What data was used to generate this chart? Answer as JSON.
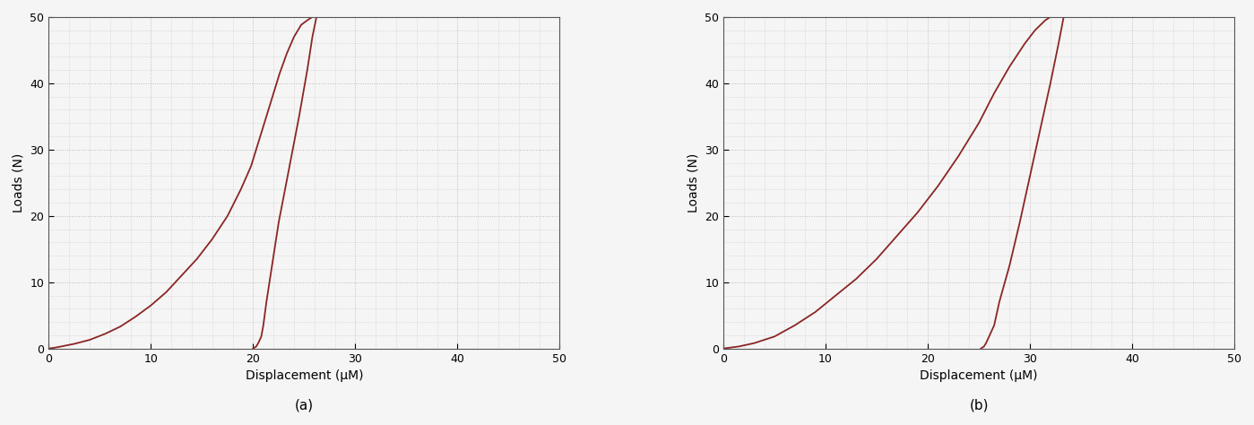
{
  "title_a": "(a)",
  "title_b": "(b)",
  "xlabel": "Displacement (μM)",
  "ylabel": "Loads (N)",
  "xlim": [
    0,
    50
  ],
  "ylim": [
    0,
    50
  ],
  "xticks": [
    0,
    10,
    20,
    30,
    40,
    50
  ],
  "yticks": [
    0,
    10,
    20,
    30,
    40,
    50
  ],
  "line_color": "#8B2525",
  "line_width": 1.3,
  "background_color": "#f5f5f5",
  "grid_color": "#bbbbbb",
  "subplot_label_fontsize": 11,
  "axis_label_fontsize": 10,
  "tick_fontsize": 9,
  "curve_a_loading_disp": [
    0.0,
    0.5,
    1.2,
    2.5,
    4.0,
    5.5,
    7.0,
    8.5,
    10.0,
    11.5,
    13.0,
    14.5,
    16.0,
    17.5,
    18.8,
    19.8,
    20.5,
    21.2,
    21.9,
    22.6,
    23.3,
    24.0,
    24.7,
    25.3,
    25.8,
    26.2
  ],
  "curve_a_loading_load": [
    0.0,
    0.1,
    0.3,
    0.7,
    1.3,
    2.2,
    3.3,
    4.8,
    6.5,
    8.5,
    11.0,
    13.5,
    16.5,
    20.0,
    24.0,
    27.5,
    31.0,
    34.5,
    38.0,
    41.5,
    44.5,
    47.0,
    48.8,
    49.5,
    50.0,
    50.0
  ],
  "curve_a_unloading_disp": [
    26.2,
    25.8,
    25.3,
    24.5,
    23.5,
    22.5,
    21.8,
    21.3,
    21.0,
    20.8,
    20.5,
    20.3,
    20.1,
    20.0
  ],
  "curve_a_unloading_load": [
    50.0,
    47.0,
    42.0,
    35.0,
    27.0,
    19.0,
    12.0,
    7.0,
    3.5,
    1.8,
    0.8,
    0.3,
    0.1,
    0.0
  ],
  "curve_b_loading_disp": [
    0.0,
    0.5,
    1.5,
    3.0,
    5.0,
    7.0,
    9.0,
    11.0,
    13.0,
    15.0,
    17.0,
    19.0,
    21.0,
    23.0,
    25.0,
    26.5,
    28.0,
    29.5,
    30.5,
    31.5,
    32.0,
    32.5,
    33.0,
    33.3
  ],
  "curve_b_loading_load": [
    0.0,
    0.1,
    0.3,
    0.8,
    1.8,
    3.5,
    5.5,
    8.0,
    10.5,
    13.5,
    17.0,
    20.5,
    24.5,
    29.0,
    34.0,
    38.5,
    42.5,
    46.0,
    48.0,
    49.5,
    50.0,
    50.0,
    50.0,
    50.0
  ],
  "curve_b_unloading_disp": [
    33.3,
    32.8,
    32.0,
    31.0,
    30.0,
    29.0,
    28.0,
    27.0,
    26.5,
    26.0,
    25.7,
    25.5,
    25.3,
    25.2
  ],
  "curve_b_unloading_load": [
    50.0,
    46.0,
    40.0,
    33.0,
    26.0,
    19.0,
    12.5,
    7.0,
    3.5,
    1.8,
    0.8,
    0.3,
    0.1,
    0.0
  ]
}
